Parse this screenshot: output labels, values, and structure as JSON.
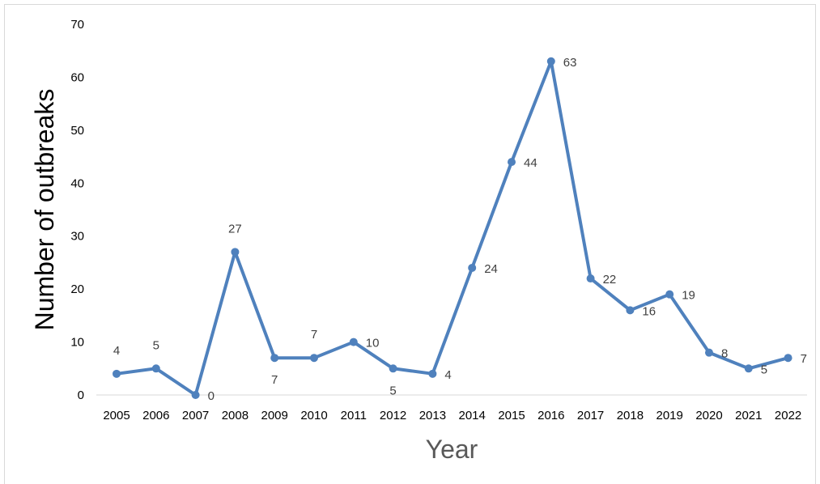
{
  "chart_data": {
    "type": "line",
    "title": "",
    "xlabel": "Year",
    "ylabel": "Number of outbreaks",
    "ylim": [
      0,
      70
    ],
    "yticks": [
      0,
      10,
      20,
      30,
      40,
      50,
      60,
      70
    ],
    "grid": false,
    "legend": "none",
    "series_color": "#4f81bd",
    "categories": [
      "2005",
      "2006",
      "2007",
      "2008",
      "2009",
      "2010",
      "2011",
      "2012",
      "2013",
      "2014",
      "2015",
      "2016",
      "2017",
      "2018",
      "2019",
      "2020",
      "2021",
      "2022"
    ],
    "series": [
      {
        "values": [
          4,
          5,
          0,
          27,
          7,
          7,
          10,
          5,
          4,
          24,
          44,
          63,
          22,
          16,
          19,
          8,
          5,
          7
        ]
      }
    ]
  }
}
